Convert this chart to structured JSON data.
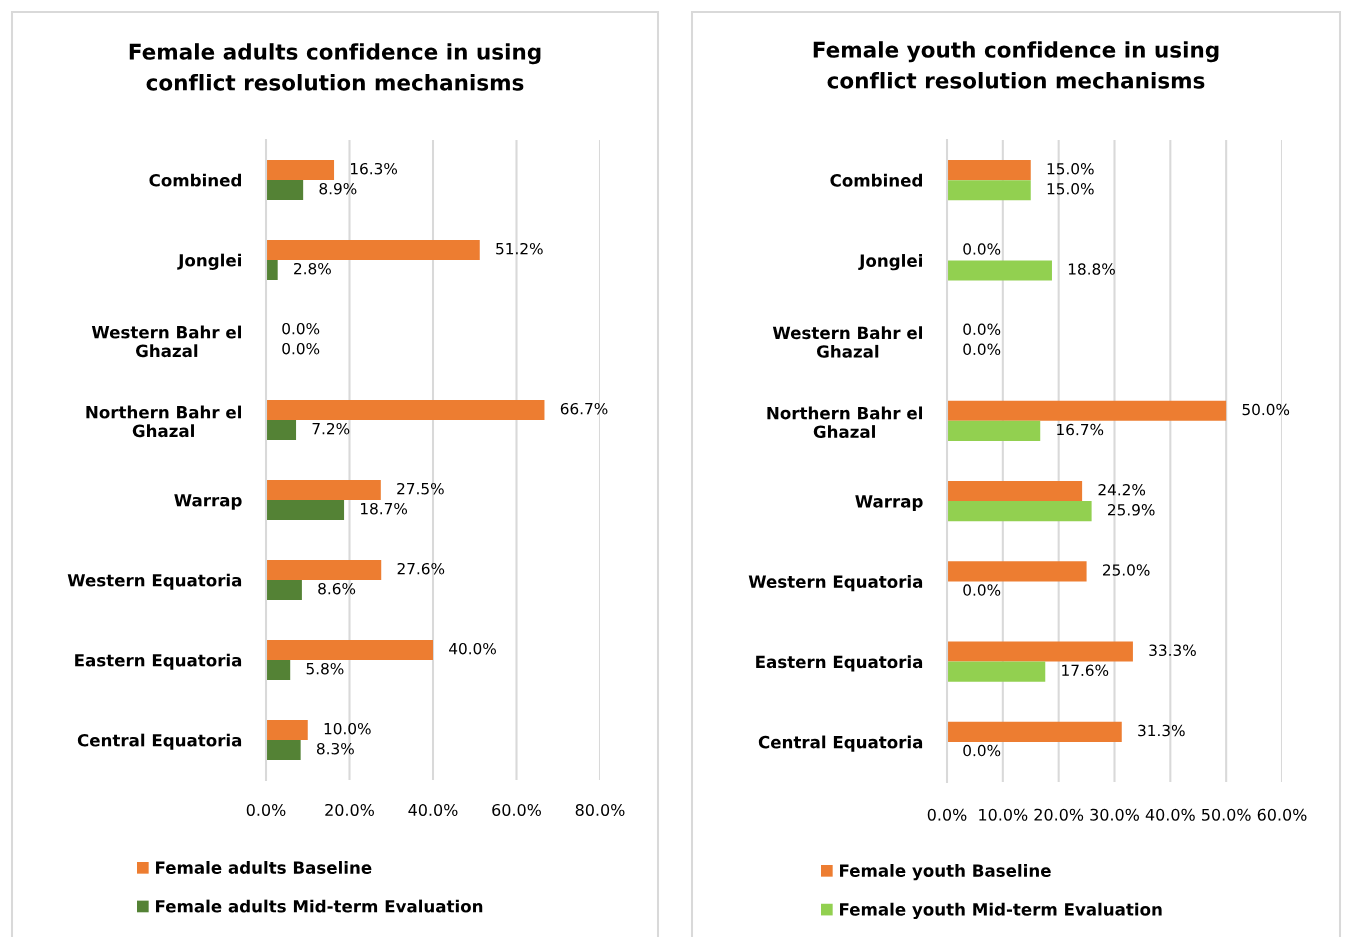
{
  "chart_data": [
    {
      "type": "bar",
      "orientation": "horizontal",
      "title": "Female adults confidence in using\nconflict resolution mechanisms",
      "categories": [
        "Combined",
        "Jonglei",
        "Western Bahr el\nGhazal",
        "Northern Bahr el\nGhazal",
        "Warrap",
        "Western Equatoria",
        "Eastern Equatoria",
        "Central Equatoria"
      ],
      "series": [
        {
          "name": "Female adults Baseline",
          "color": "#ed7d31",
          "values": [
            16.3,
            51.2,
            0.0,
            66.7,
            27.5,
            27.6,
            40.0,
            10.0
          ],
          "value_labels": [
            "16.3%",
            "51.2%",
            "0.0%",
            "66.7%",
            "27.5%",
            "27.6%",
            "40.0%",
            "10.0%"
          ]
        },
        {
          "name": "Female adults Mid-term Evaluation",
          "color": "#548235",
          "values": [
            8.9,
            2.8,
            0.0,
            7.2,
            18.7,
            8.6,
            5.8,
            8.3
          ],
          "value_labels": [
            "8.9%",
            "2.8%",
            "0.0%",
            "7.2%",
            "18.7%",
            "8.6%",
            "5.8%",
            "8.3%"
          ]
        }
      ],
      "xlim": [
        0,
        80
      ],
      "xticks": [
        {
          "value": 0,
          "label": "0.0%"
        },
        {
          "value": 20,
          "label": "20.0%"
        },
        {
          "value": 40,
          "label": "40.0%"
        },
        {
          "value": 60,
          "label": "60.0%"
        },
        {
          "value": 80,
          "label": "80.0%"
        }
      ],
      "grid": "x",
      "legend": "bottom"
    },
    {
      "type": "bar",
      "orientation": "horizontal",
      "title": "Female youth confidence in using\nconflict resolution mechanisms",
      "categories": [
        "Combined",
        "Jonglei",
        "Western Bahr el\nGhazal",
        "Northern Bahr el\nGhazal",
        "Warrap",
        "Western Equatoria",
        "Eastern Equatoria",
        "Central Equatoria"
      ],
      "series": [
        {
          "name": "Female youth Baseline",
          "color": "#ed7d31",
          "values": [
            15.0,
            0.0,
            0.0,
            50.0,
            24.2,
            25.0,
            33.3,
            31.3
          ],
          "value_labels": [
            "15.0%",
            "0.0%",
            "0.0%",
            "50.0%",
            "24.2%",
            "25.0%",
            "33.3%",
            "31.3%"
          ]
        },
        {
          "name": "Female youth Mid-term Evaluation",
          "color": "#92d050",
          "values": [
            15.0,
            18.8,
            0.0,
            16.7,
            25.9,
            0.0,
            17.6,
            0.0
          ],
          "value_labels": [
            "15.0%",
            "18.8%",
            "0.0%",
            "16.7%",
            "25.9%",
            "0.0%",
            "17.6%",
            "0.0%"
          ]
        }
      ],
      "xlim": [
        0,
        60
      ],
      "xticks": [
        {
          "value": 0,
          "label": "0.0%"
        },
        {
          "value": 10,
          "label": "10.0%"
        },
        {
          "value": 20,
          "label": "20.0%"
        },
        {
          "value": 30,
          "label": "30.0%"
        },
        {
          "value": 40,
          "label": "40.0%"
        },
        {
          "value": 50,
          "label": "50.0%"
        },
        {
          "value": 60,
          "label": "60.0%"
        }
      ],
      "grid": "x",
      "legend": "bottom"
    }
  ]
}
